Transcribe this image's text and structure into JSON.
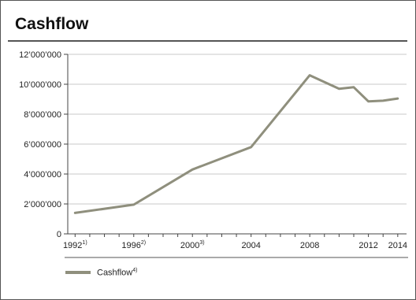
{
  "chart_data": {
    "type": "line",
    "title": "Cashflow",
    "xlabel": "",
    "ylabel": "",
    "xlim": [
      1991.5,
      2014.6
    ],
    "ylim": [
      0,
      12000000
    ],
    "y_ticks": [
      0,
      2000000,
      4000000,
      6000000,
      8000000,
      10000000,
      12000000
    ],
    "y_tick_labels": [
      "0",
      "2’000’000",
      "4’000’000",
      "6’000’000",
      "8’000’000",
      "10’000’000",
      "12’000’000"
    ],
    "x_minor_ticks": [
      1992,
      1993,
      1994,
      1995,
      1996,
      1997,
      1998,
      1999,
      2000,
      2001,
      2002,
      2003,
      2004,
      2005,
      2006,
      2007,
      2008,
      2009,
      2010,
      2011,
      2012,
      2013,
      2014
    ],
    "x_tick_labels": [
      {
        "x": 1992,
        "text": "1992",
        "sup": "1)"
      },
      {
        "x": 1996,
        "text": "1996",
        "sup": "2)"
      },
      {
        "x": 2000,
        "text": "2000",
        "sup": "3)"
      },
      {
        "x": 2004,
        "text": "2004",
        "sup": ""
      },
      {
        "x": 2008,
        "text": "2008",
        "sup": ""
      },
      {
        "x": 2012,
        "text": "2012",
        "sup": ""
      },
      {
        "x": 2014,
        "text": "2014",
        "sup": ""
      }
    ],
    "grid": "horizontal",
    "series": [
      {
        "name": "Cashflow",
        "name_sup": "4)",
        "color": "#8f8f7d",
        "x": [
          1992,
          1996,
          2000,
          2004,
          2008,
          2010,
          2011,
          2012,
          2013,
          2014
        ],
        "y": [
          1400000,
          1950000,
          4300000,
          5800000,
          10600000,
          9700000,
          9800000,
          8850000,
          8900000,
          9050000
        ]
      }
    ],
    "legend": "bottom-left"
  }
}
